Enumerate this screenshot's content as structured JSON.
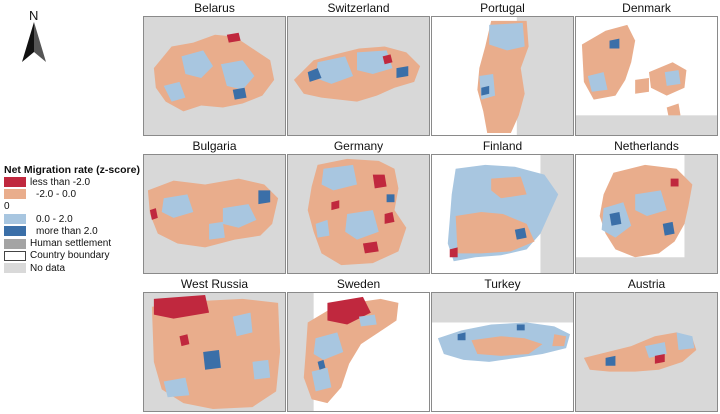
{
  "north_arrow": {
    "label": "N"
  },
  "legend": {
    "title": "Net Migration rate (z-score)",
    "items": [
      {
        "label": "less than -2.0",
        "color": "#c0283e",
        "indent": false
      },
      {
        "label": "-2.0 - 0.0",
        "color": "#e9ad8c",
        "indent": true
      },
      {
        "label": "0",
        "color": "",
        "indent": false
      },
      {
        "label": "0.0 - 2.0",
        "color": "#a8c6e0",
        "indent": true
      },
      {
        "label": "more than 2.0",
        "color": "#3b6fa8",
        "indent": true
      },
      {
        "label": "Human settlement",
        "color": "#a4a4a4",
        "indent": false
      },
      {
        "label": "Country boundary",
        "color": "#ffffff",
        "indent": false
      },
      {
        "label": "No data",
        "color": "#d9d9d9",
        "indent": false
      }
    ]
  },
  "countries": [
    "Belarus",
    "Switzerland",
    "Portugal",
    "Denmark",
    "Bulgaria",
    "Germany",
    "Finland",
    "Netherlands",
    "West Russia",
    "Sweden",
    "Turkey",
    "Austria"
  ]
}
